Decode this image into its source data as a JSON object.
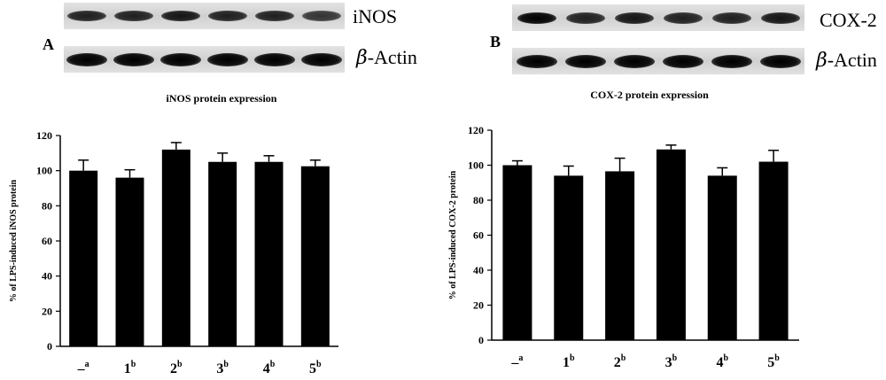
{
  "panels": [
    {
      "letter": "A",
      "blots": [
        {
          "label": "iNOS",
          "greek": "",
          "band_intensity": [
            0.85,
            0.85,
            0.9,
            0.85,
            0.85,
            0.75
          ]
        },
        {
          "label": "-Actin",
          "greek": "β",
          "band_intensity": [
            1,
            1,
            1,
            1,
            1,
            1
          ]
        }
      ]
    },
    {
      "letter": "B",
      "blots": [
        {
          "label": "COX-2",
          "greek": "",
          "band_intensity": [
            1,
            0.85,
            0.9,
            0.85,
            0.85,
            0.9
          ]
        },
        {
          "label": "-Actin",
          "greek": "β",
          "band_intensity": [
            1,
            1,
            1,
            1,
            1,
            1
          ]
        }
      ]
    }
  ],
  "chart_data": [
    {
      "type": "bar",
      "title": "iNOS protein expression",
      "ylabel": "% of LPS-induced iNOS protein",
      "xlabel": "",
      "categories": [
        {
          "main": "–",
          "sup": "a"
        },
        {
          "main": "1",
          "sup": "b"
        },
        {
          "main": "2",
          "sup": "b"
        },
        {
          "main": "3",
          "sup": "b"
        },
        {
          "main": "4",
          "sup": "b"
        },
        {
          "main": "5",
          "sup": "b"
        }
      ],
      "values": [
        100,
        96,
        112,
        105,
        105,
        102.5
      ],
      "errors": [
        6,
        4.5,
        4,
        5,
        3.5,
        3.5
      ],
      "ylim": [
        0,
        120
      ],
      "yticks": [
        0,
        20,
        40,
        60,
        80,
        100,
        120
      ],
      "bar_color": "#000000",
      "grid": false
    },
    {
      "type": "bar",
      "title": "COX-2 protein expression",
      "ylabel": "% of LPS-induced COX-2 protein",
      "xlabel": "",
      "categories": [
        {
          "main": "–",
          "sup": "a"
        },
        {
          "main": "1",
          "sup": "b"
        },
        {
          "main": "2",
          "sup": "b"
        },
        {
          "main": "3",
          "sup": "b"
        },
        {
          "main": "4",
          "sup": "b"
        },
        {
          "main": "5",
          "sup": "b"
        }
      ],
      "values": [
        100,
        94,
        96.5,
        109,
        94,
        102
      ],
      "errors": [
        2.5,
        5.5,
        7.5,
        2.5,
        4.5,
        6.5
      ],
      "ylim": [
        0,
        120
      ],
      "yticks": [
        0,
        20,
        40,
        60,
        80,
        100,
        120
      ],
      "bar_color": "#000000",
      "grid": false
    }
  ]
}
